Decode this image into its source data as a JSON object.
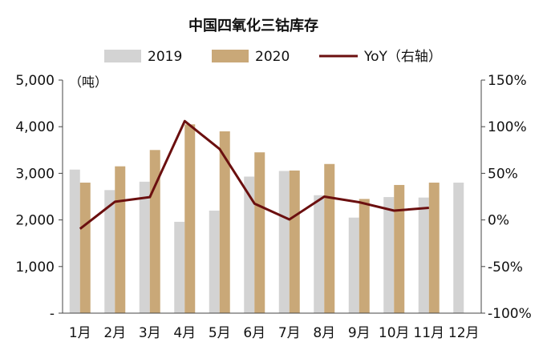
{
  "chart_data": {
    "type": "bar",
    "title": "中国四氧化三钴库存",
    "unit_label": "（吨）",
    "categories": [
      "1月",
      "2月",
      "3月",
      "4月",
      "5月",
      "6月",
      "7月",
      "8月",
      "9月",
      "10月",
      "11月",
      "12月"
    ],
    "series": [
      {
        "name": "2019",
        "kind": "bar",
        "axis": "left",
        "color": "#d3d3d3",
        "values": [
          3080,
          2640,
          2820,
          1960,
          2200,
          2930,
          3050,
          2530,
          2050,
          2490,
          2480,
          2800
        ]
      },
      {
        "name": "2020",
        "kind": "bar",
        "axis": "left",
        "color": "#c9a878",
        "values": [
          2800,
          3150,
          3500,
          4050,
          3900,
          3450,
          3060,
          3200,
          2450,
          2750,
          2800,
          null
        ]
      },
      {
        "name": "YoY（右轴）",
        "kind": "line",
        "axis": "right",
        "color": "#6b0f0f",
        "values": [
          -9.5,
          19.5,
          24.5,
          106,
          76,
          17.5,
          0.5,
          25,
          19,
          10,
          13,
          null
        ]
      }
    ],
    "y_left": {
      "min": 0,
      "max": 5000,
      "ticks": [
        0,
        1000,
        2000,
        3000,
        4000,
        5000
      ],
      "tick_labels": [
        "-",
        "1,000",
        "2,000",
        "3,000",
        "4,000",
        "5,000"
      ]
    },
    "y_right": {
      "min": -100,
      "max": 150,
      "ticks": [
        -100,
        -50,
        0,
        50,
        100,
        150
      ],
      "tick_labels": [
        "-100%",
        "-50%",
        "0%",
        "50%",
        "100%",
        "150%"
      ]
    },
    "grid": false,
    "legend_position": "top"
  }
}
